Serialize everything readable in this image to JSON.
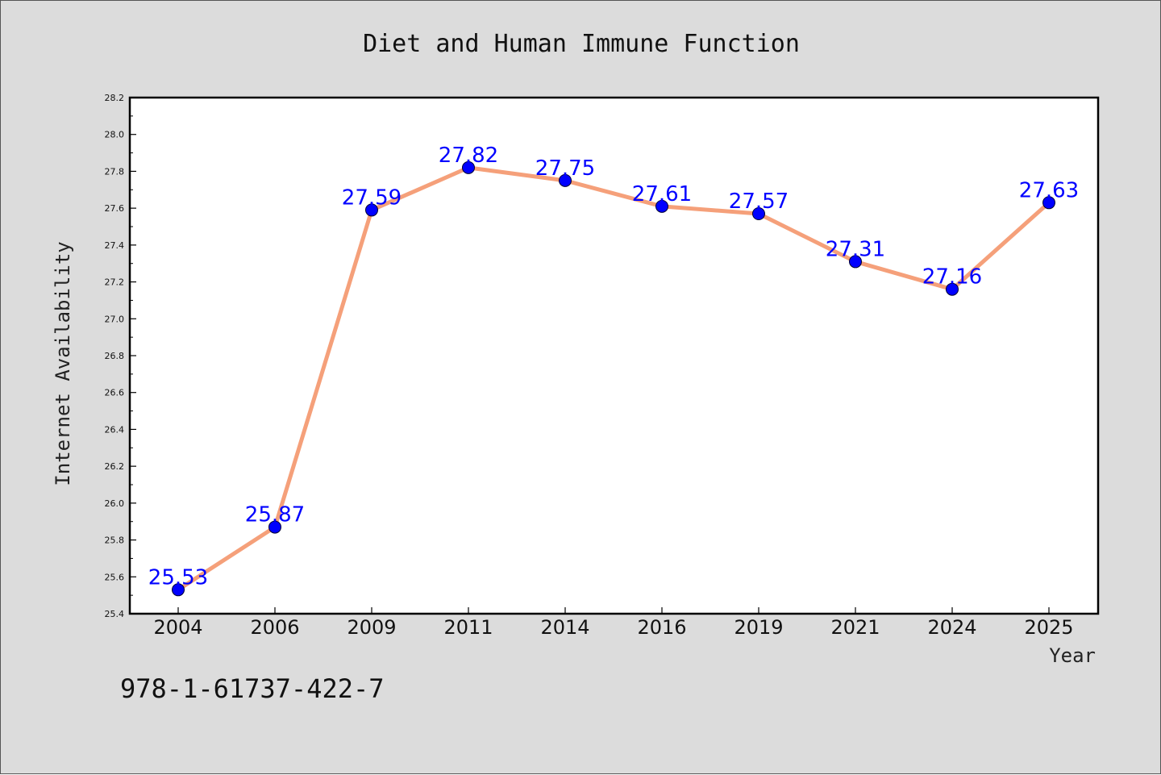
{
  "colors": {
    "background": "#dcdcdc",
    "plot_background": "#ffffff",
    "line": "#f5a07a",
    "marker": "#0000ff",
    "data_label": "#0000ff"
  },
  "footer": {
    "isbn": "978-1-61737-422-7"
  },
  "chart_data": {
    "type": "line",
    "title": "Diet and Human Immune Function",
    "xlabel": "Year",
    "ylabel": "Internet Availability",
    "categories": [
      "2004",
      "2006",
      "2009",
      "2011",
      "2014",
      "2016",
      "2019",
      "2021",
      "2024",
      "2025"
    ],
    "series": [
      {
        "values": [
          25.53,
          25.87,
          27.59,
          27.82,
          27.75,
          27.61,
          27.57,
          27.31,
          27.16,
          27.63
        ],
        "data_labels": [
          "25.53",
          "25.87",
          "27.59",
          "27.82",
          "27.75",
          "27.61",
          "27.57",
          "27.31",
          "27.16",
          "27.63"
        ]
      }
    ],
    "ylim": [
      25.4,
      28.2
    ],
    "yticks": [
      25.4,
      25.6,
      25.8,
      26.0,
      26.2,
      26.4,
      26.6,
      26.8,
      27.0,
      27.2,
      27.4,
      27.6,
      27.8,
      28.0,
      28.2
    ],
    "ytick_labels": [
      "25.4",
      "25.6",
      "25.8",
      "26.0",
      "26.2",
      "26.4",
      "26.6",
      "26.8",
      "27.0",
      "27.2",
      "27.4",
      "27.6",
      "27.8",
      "28.0",
      "28.2"
    ],
    "grid": false,
    "legend": "none",
    "markers": true
  }
}
